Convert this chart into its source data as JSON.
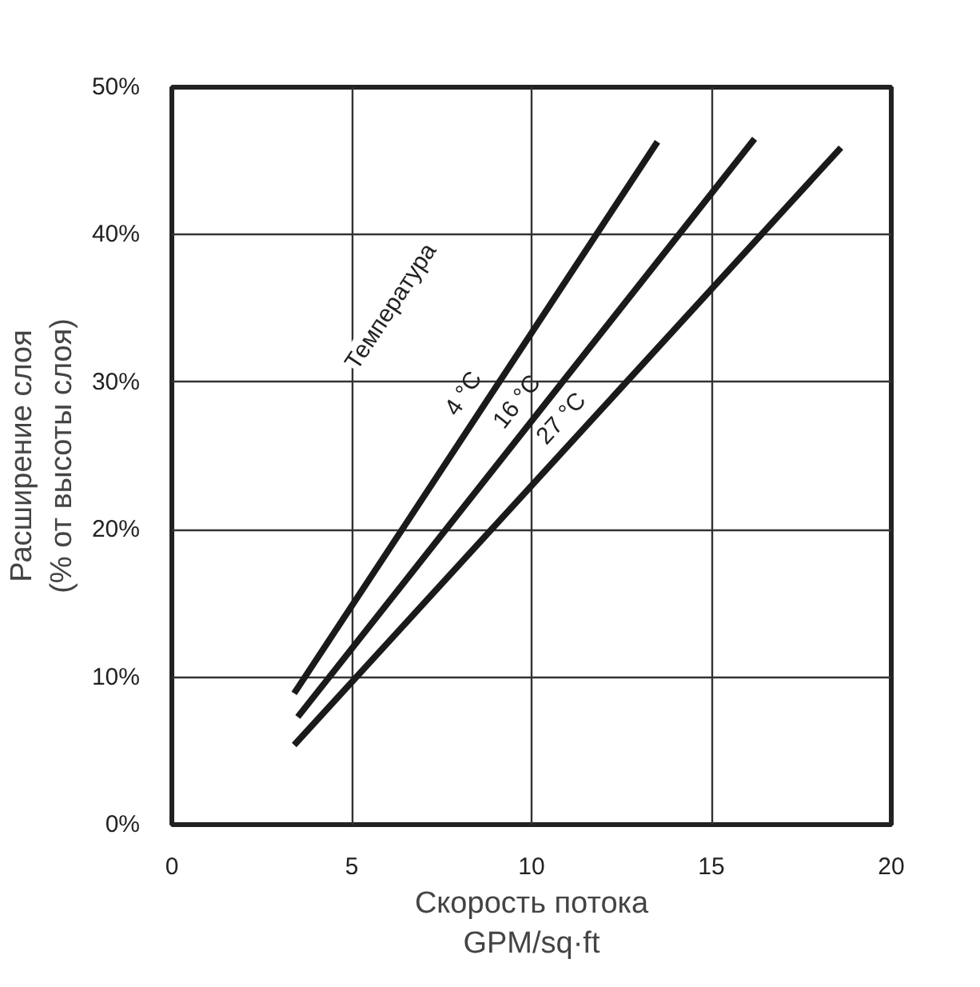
{
  "chart_data": {
    "type": "line",
    "xlabel": "Скорость потока\nGPM/sq·ft",
    "ylabel": "Расширение слоя\n(% от высоты слоя)",
    "annotations": [
      "Температура"
    ],
    "xlim": [
      0,
      20
    ],
    "ylim": [
      0,
      50
    ],
    "xticks": [
      0,
      5,
      10,
      15,
      20
    ],
    "yticks": [
      {
        "value": 0,
        "label": "0%"
      },
      {
        "value": 10,
        "label": "10%"
      },
      {
        "value": 20,
        "label": "20%"
      },
      {
        "value": 30,
        "label": "30%"
      },
      {
        "value": 40,
        "label": "40%"
      },
      {
        "value": 50,
        "label": "50%"
      }
    ],
    "grid": true,
    "marker": "none",
    "line_style": "solid",
    "series": [
      {
        "name": "4 °C",
        "color": "#1a1a1a",
        "x": [
          3.4,
          13.5
        ],
        "values": [
          8.9,
          46.3
        ]
      },
      {
        "name": "16 °C",
        "color": "#1a1a1a",
        "x": [
          3.5,
          16.2
        ],
        "values": [
          7.3,
          46.5
        ]
      },
      {
        "name": "27 °C",
        "color": "#1a1a1a",
        "x": [
          3.4,
          18.6
        ],
        "values": [
          5.4,
          45.9
        ]
      }
    ]
  }
}
